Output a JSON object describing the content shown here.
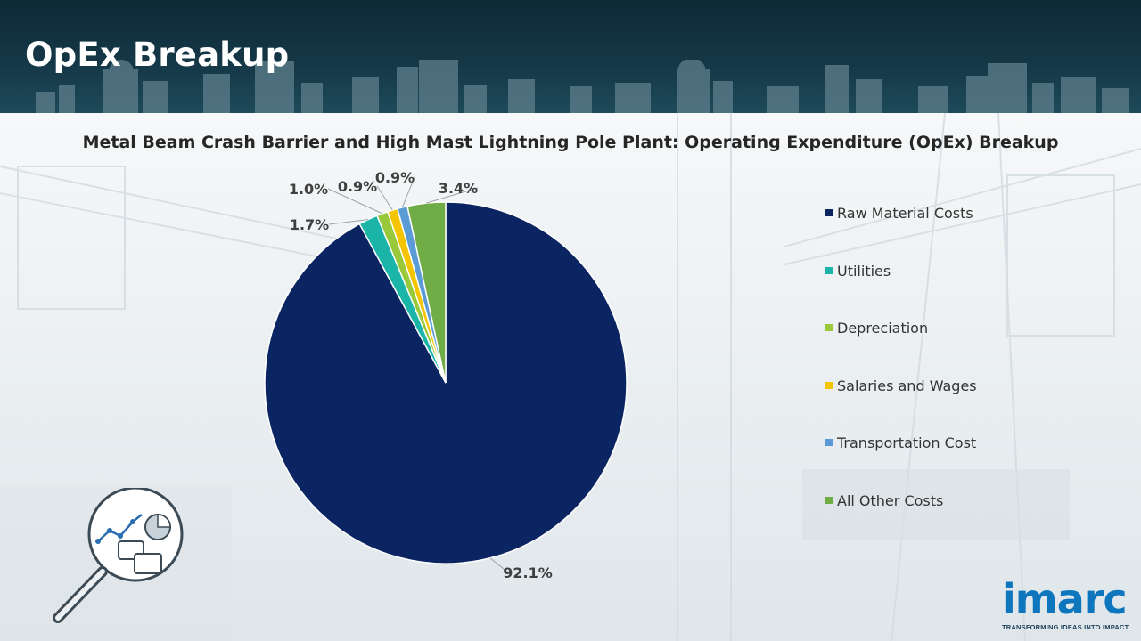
{
  "header": {
    "title": "OpEx Breakup"
  },
  "brand": {
    "logo_text": "imarc",
    "tagline": "TRANSFORMING IDEAS INTO IMPACT"
  },
  "chart_data": {
    "type": "pie",
    "title": "Metal Beam Crash Barrier and High Mast Lightning Pole Plant: Operating Expenditure (OpEx) Breakup",
    "categories": [
      "Raw Material Costs",
      "Utilities",
      "Depreciation",
      "Salaries and Wages",
      "Transportation Cost",
      "All Other Costs"
    ],
    "values": [
      92.1,
      1.7,
      1.0,
      0.9,
      0.9,
      3.4
    ],
    "labels": [
      "92.1%",
      "1.7%",
      "1.0%",
      "0.9%",
      "0.9%",
      "3.4%"
    ],
    "colors": [
      "#0b2462",
      "#1ab5a8",
      "#99c93a",
      "#f5c400",
      "#5b9bd5",
      "#70ad47"
    ],
    "legend_position": "right"
  }
}
